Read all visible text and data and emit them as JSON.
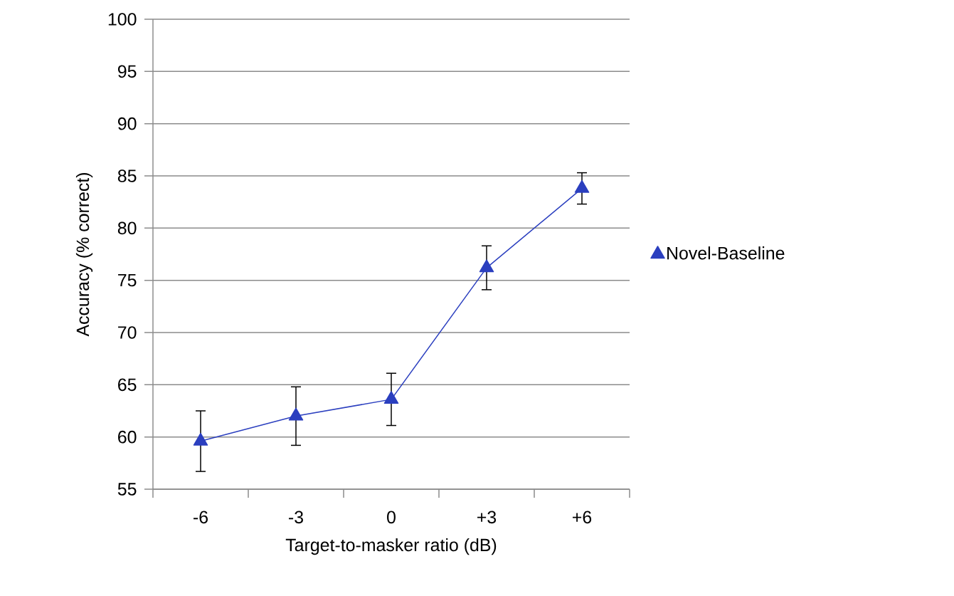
{
  "chart_data": {
    "type": "line",
    "xlabel": "Target-to-masker ratio (dB)",
    "ylabel": "Accuracy (% correct)",
    "categories": [
      "-6",
      "-3",
      "0",
      "+3",
      "+6"
    ],
    "series": [
      {
        "name": "Novel-Baseline",
        "color": "#2b3fbf",
        "values": [
          59.6,
          62.0,
          63.6,
          76.2,
          83.8
        ],
        "errors": [
          2.9,
          2.8,
          2.5,
          2.1,
          1.5
        ]
      }
    ],
    "ylim": [
      55,
      100
    ],
    "yticks": [
      55,
      60,
      65,
      70,
      75,
      80,
      85,
      90,
      95,
      100
    ],
    "grid": "y",
    "legend": "right",
    "marker": "triangle",
    "line_style": "solid"
  }
}
